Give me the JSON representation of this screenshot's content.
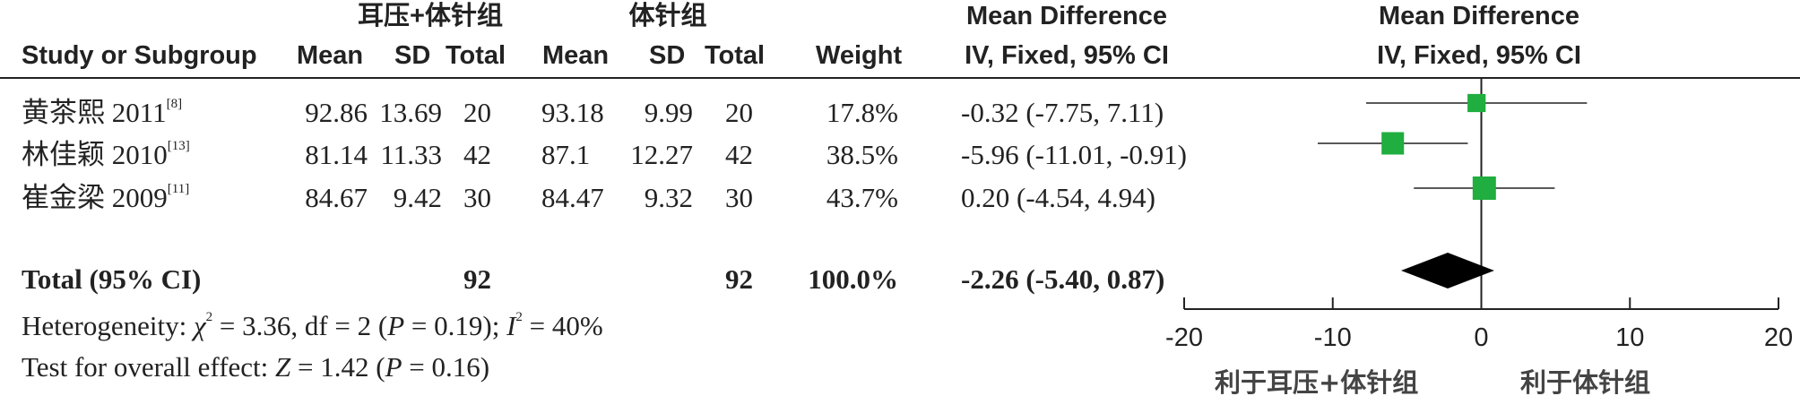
{
  "groups": {
    "experimental": "耳压+体针组",
    "control": "体针组"
  },
  "columns": {
    "study": "Study or Subgroup",
    "mean": "Mean",
    "sd": "SD",
    "total": "Total",
    "weight": "Weight",
    "md_title": "Mean Difference",
    "md_method": "IV, Fixed, 95% CI"
  },
  "studies": [
    {
      "name": "黄茶熙 2011",
      "ref": "[8]",
      "exp_mean": "92.86",
      "exp_sd": "13.69",
      "exp_total": "20",
      "ctl_mean": "93.18",
      "ctl_sd": "9.99",
      "ctl_total": "20",
      "weight": "17.8%",
      "ci_text": "-0.32 (-7.75, 7.11)"
    },
    {
      "name": "林佳颖 2010",
      "ref": "[13]",
      "exp_mean": "81.14",
      "exp_sd": "11.33",
      "exp_total": "42",
      "ctl_mean": "87.1",
      "ctl_sd": "12.27",
      "ctl_total": "42",
      "weight": "38.5%",
      "ci_text": "-5.96 (-11.01, -0.91)"
    },
    {
      "name": "崔金梁 2009",
      "ref": "[11]",
      "exp_mean": "84.67",
      "exp_sd": "9.42",
      "exp_total": "30",
      "ctl_mean": "84.47",
      "ctl_sd": "9.32",
      "ctl_total": "30",
      "weight": "43.7%",
      "ci_text": "0.20 (-4.54, 4.94)"
    }
  ],
  "total": {
    "label": "Total (95% CI)",
    "exp_total": "92",
    "ctl_total": "92",
    "weight": "100.0%",
    "ci_text": "-2.26 (-5.40, 0.87)"
  },
  "footer": {
    "heterogeneity_prefix": "Heterogeneity: ",
    "chi": "χ",
    "sq": "2",
    "heterogeneity_mid": " = 3.36, df = 2 (",
    "p": "P",
    "heterogeneity_p": " = 0.19); ",
    "i": "I",
    "heterogeneity_end": " = 40%",
    "overall_prefix": "Test for overall effect: ",
    "z": "Z",
    "overall_mid": " = 1.42 (",
    "overall_end": " = 0.16)"
  },
  "colors": {
    "marker": "#1fae3f",
    "diamond": "#000000",
    "line": "#222222"
  },
  "chart_data": {
    "type": "forest",
    "title": "Mean Difference",
    "subtitle": "IV, Fixed, 95% CI",
    "xlim": [
      -20,
      20
    ],
    "ticks": [
      -20,
      -10,
      0,
      10,
      20
    ],
    "tick_labels": [
      "-20",
      "-10",
      "0",
      "10",
      "20"
    ],
    "favours_left": "利于耳压+体针组",
    "favours_right": "利于体针组",
    "points": [
      {
        "study": "黄茶熙 2011",
        "md": -0.32,
        "lo": -7.75,
        "hi": 7.11,
        "weight": 17.8
      },
      {
        "study": "林佳颖 2010",
        "md": -5.96,
        "lo": -11.01,
        "hi": -0.91,
        "weight": 38.5
      },
      {
        "study": "崔金梁 2009",
        "md": 0.2,
        "lo": -4.54,
        "hi": 4.94,
        "weight": 43.7
      }
    ],
    "overall": {
      "md": -2.26,
      "lo": -5.4,
      "hi": 0.87
    }
  }
}
